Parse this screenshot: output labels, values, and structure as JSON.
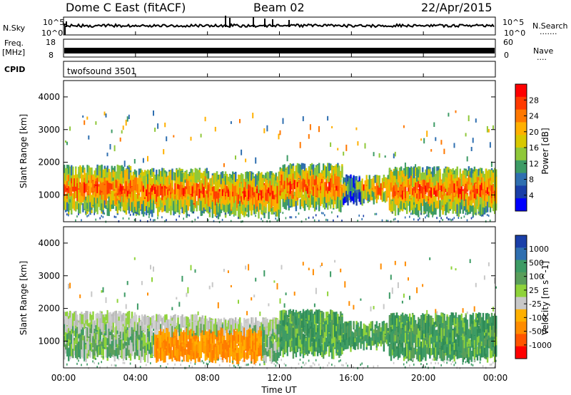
{
  "header": {
    "station": "Dome C East (fitACF)",
    "beam": "Beam 02",
    "date": "22/Apr/2015"
  },
  "top_panels": {
    "nsky": {
      "label": "N.Sky",
      "tick_top": "10^5",
      "tick_bottom": "10^0"
    },
    "nsearch": {
      "label": "N.Search",
      "tick_top": "10^5",
      "tick_bottom": "10^0",
      "dots": "......."
    },
    "freq": {
      "label_line1": "Freq.",
      "label_line2": "[MHz]",
      "tick_top": "18",
      "tick_bottom": "8"
    },
    "nave": {
      "label": "Nave",
      "tick_top": "60",
      "tick_bottom": "0",
      "dots": "...."
    },
    "cpid": {
      "label": "CPID",
      "program": "twofsound 3501"
    }
  },
  "x_axis": {
    "label": "Time UT",
    "ticks": [
      "00:00",
      "04:00",
      "08:00",
      "12:00",
      "16:00",
      "20:00",
      "00:00"
    ]
  },
  "chart_data": [
    {
      "type": "heatmap",
      "name": "power",
      "ylabel": "Slant Range [km]",
      "yticks": [
        1000,
        2000,
        3000,
        4000
      ],
      "ylim": [
        180,
        4500
      ],
      "xlim_hours": [
        0,
        24
      ],
      "colorbar": {
        "label": "Power [dB]",
        "ticks": [
          "28",
          "24",
          "20",
          "16",
          "12",
          "8",
          "4"
        ],
        "colors": [
          "#ff0000",
          "#ff3a00",
          "#ff7800",
          "#ffb000",
          "#d8c800",
          "#8fc83a",
          "#3d9b65",
          "#2f6fb0",
          "#1a3fa8",
          "#0000ff"
        ]
      }
    },
    {
      "type": "heatmap",
      "name": "velocity",
      "ylabel": "Slant Range [km]",
      "yticks": [
        1000,
        2000,
        3000,
        4000
      ],
      "ylim": [
        180,
        4500
      ],
      "xlim_hours": [
        0,
        24
      ],
      "colorbar": {
        "label": "Velocity [m s^-1]",
        "ticks": [
          "1000",
          "500",
          "100",
          "25",
          "-25",
          "-100",
          "-500",
          "-1000"
        ],
        "colors": [
          "#1a3fa8",
          "#2f6fb0",
          "#3d9b65",
          "#5a9e5a",
          "#8fd33a",
          "#c8c8c8",
          "#ffb000",
          "#ff8c00",
          "#ff5500",
          "#ff0000"
        ]
      }
    }
  ]
}
